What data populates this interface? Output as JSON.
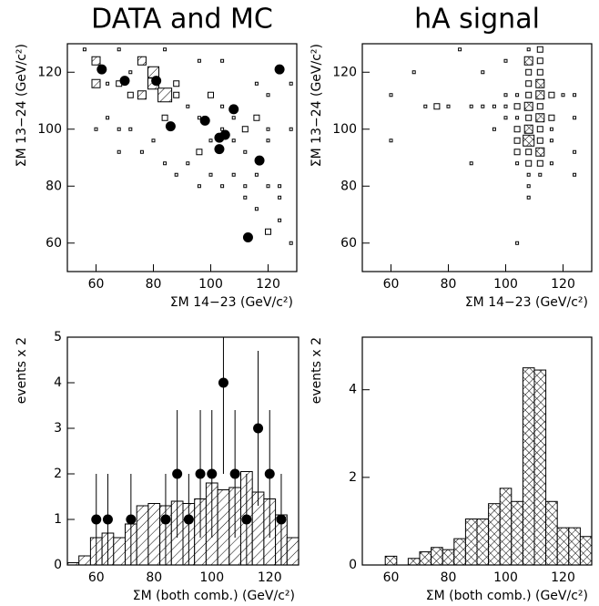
{
  "chart_data": [
    {
      "type": "scatter",
      "title": "DATA and MC",
      "x_label": "ΣM 14−23 (GeV/c²)",
      "y_label": "ΣM 13−24 (GeV/c²)",
      "xlim": [
        50,
        130
      ],
      "ylim": [
        50,
        130
      ],
      "xticks": [
        60,
        80,
        100,
        120
      ],
      "yticks": [
        60,
        80,
        100,
        120
      ],
      "series": [
        {
          "marker": "box",
          "hatch": "diagonal",
          "color": "#000000",
          "x": [
            80,
            80,
            84,
            76,
            72,
            88,
            68,
            60,
            76,
            64,
            60,
            72,
            88,
            84,
            92,
            96,
            100,
            104,
            108,
            112,
            100,
            104,
            96,
            116,
            120,
            108,
            112,
            116,
            120,
            124,
            116,
            120,
            124,
            112,
            68,
            72,
            60,
            64,
            56,
            68,
            84,
            96,
            104,
            116,
            120,
            124,
            128,
            92,
            100,
            108,
            84,
            88,
            128,
            124,
            96,
            104,
            112,
            120,
            128,
            80,
            76,
            68
          ],
          "y": [
            120,
            116,
            112,
            112,
            112,
            112,
            116,
            124,
            124,
            116,
            116,
            120,
            116,
            104,
            108,
            104,
            112,
            108,
            104,
            100,
            96,
            100,
            92,
            104,
            100,
            96,
            92,
            84,
            80,
            80,
            72,
            64,
            76,
            76,
            100,
            100,
            100,
            104,
            128,
            128,
            128,
            124,
            124,
            116,
            112,
            120,
            116,
            88,
            84,
            84,
            88,
            84,
            60,
            68,
            80,
            80,
            80,
            96,
            100,
            96,
            92,
            92
          ],
          "size": [
            4,
            4,
            5,
            3,
            2,
            2,
            2,
            3,
            3,
            1,
            3,
            1,
            2,
            2,
            1,
            1,
            2,
            1,
            1,
            2,
            1,
            1,
            2,
            2,
            1,
            1,
            1,
            1,
            1,
            1,
            1,
            2,
            1,
            1,
            1,
            1,
            1,
            1,
            1,
            1,
            1,
            1,
            1,
            1,
            1,
            1,
            1,
            1,
            1,
            1,
            1,
            1,
            1,
            1,
            1,
            1,
            1,
            1,
            1,
            1,
            1,
            1
          ]
        },
        {
          "marker": "circle",
          "color": "#000000",
          "x": [
            62,
            70,
            81,
            86,
            98,
            108,
            103,
            105,
            103,
            117,
            124,
            113
          ],
          "y": [
            121,
            117,
            117,
            101,
            103,
            107,
            97,
            98,
            93,
            89,
            121,
            62
          ]
        }
      ]
    },
    {
      "type": "scatter",
      "title": "hA signal",
      "x_label": "ΣM 14−23 (GeV/c²)",
      "y_label": "ΣM 13−24 (GeV/c²)",
      "xlim": [
        50,
        130
      ],
      "ylim": [
        50,
        130
      ],
      "xticks": [
        60,
        80,
        100,
        120
      ],
      "yticks": [
        60,
        80,
        100,
        120
      ],
      "series": [
        {
          "marker": "box",
          "hatch": "cross",
          "color": "#000000",
          "x": [
            108,
            112,
            112,
            108,
            108,
            112,
            108,
            112,
            108,
            112,
            108,
            112,
            108,
            112,
            108,
            112,
            108,
            112,
            108,
            112,
            108,
            112,
            104,
            104,
            104,
            104,
            104,
            104,
            104,
            100,
            100,
            100,
            96,
            96,
            92,
            88,
            80,
            76,
            72,
            116,
            120,
            116,
            116,
            116,
            116,
            108,
            108,
            108,
            112,
            104,
            60,
            60,
            68,
            84,
            92,
            100,
            124,
            124,
            124,
            124,
            88
          ],
          "y": [
            124,
            128,
            124,
            128,
            120,
            120,
            116,
            116,
            112,
            112,
            108,
            108,
            104,
            104,
            100,
            100,
            96,
            96,
            92,
            92,
            88,
            88,
            88,
            92,
            96,
            100,
            104,
            108,
            112,
            108,
            112,
            104,
            108,
            100,
            108,
            108,
            108,
            108,
            108,
            112,
            112,
            104,
            100,
            96,
            88,
            84,
            80,
            76,
            84,
            60,
            96,
            112,
            120,
            128,
            120,
            124,
            112,
            104,
            92,
            84,
            88
          ],
          "size": [
            3,
            2,
            2,
            1,
            2,
            2,
            2,
            3,
            2,
            3,
            3,
            2,
            2,
            3,
            3,
            2,
            4,
            2,
            2,
            3,
            2,
            2,
            1,
            2,
            2,
            2,
            1,
            2,
            1,
            1,
            1,
            1,
            1,
            1,
            1,
            1,
            1,
            2,
            1,
            2,
            1,
            2,
            1,
            1,
            1,
            1,
            1,
            1,
            1,
            1,
            1,
            1,
            1,
            1,
            1,
            1,
            1,
            1,
            1,
            1,
            1
          ]
        }
      ]
    },
    {
      "type": "histogram",
      "x_label": "ΣM (both comb.) (GeV/c²)",
      "y_label": "events x 2",
      "xlim": [
        50,
        130
      ],
      "ylim": [
        0,
        5
      ],
      "xticks": [
        60,
        80,
        100,
        120
      ],
      "yticks": [
        0,
        1,
        2,
        3,
        4,
        5
      ],
      "hatch": "diagonal",
      "color": "#000000",
      "bins": [
        50,
        54,
        58,
        62,
        66,
        70,
        74,
        78,
        82,
        86,
        90,
        94,
        98,
        102,
        106,
        110,
        114,
        118,
        122,
        126,
        130
      ],
      "values": [
        0.05,
        0.2,
        0.6,
        0.7,
        0.6,
        0.9,
        1.3,
        1.35,
        1.3,
        1.4,
        1.35,
        1.45,
        1.8,
        1.65,
        1.7,
        2.05,
        1.6,
        1.45,
        1.1,
        0.6
      ],
      "points": {
        "x": [
          60,
          64,
          72,
          84,
          88,
          92,
          96,
          100,
          104,
          108,
          112,
          116,
          120,
          124
        ],
        "y": [
          1,
          1,
          1,
          1,
          2,
          1,
          2,
          2,
          4,
          2,
          1,
          3,
          2,
          1
        ],
        "yerr": [
          1,
          1,
          1,
          1,
          1.4,
          1,
          1.4,
          1.4,
          2,
          1.4,
          1,
          1.7,
          1.4,
          1
        ]
      }
    },
    {
      "type": "histogram",
      "x_label": "ΣM (both comb.) (GeV/c²)",
      "y_label": "events x 2",
      "xlim": [
        50,
        130
      ],
      "ylim": [
        0,
        5.2
      ],
      "xticks": [
        60,
        80,
        100,
        120
      ],
      "yticks": [
        0,
        2,
        4
      ],
      "hatch": "cross",
      "color": "#000000",
      "bins": [
        50,
        54,
        58,
        62,
        66,
        70,
        74,
        78,
        82,
        86,
        90,
        94,
        98,
        102,
        106,
        110,
        114,
        118,
        122,
        126,
        130
      ],
      "values": [
        0,
        0,
        0.2,
        0,
        0.15,
        0.3,
        0.4,
        0.35,
        0.6,
        1.05,
        1.05,
        1.4,
        1.75,
        1.45,
        4.5,
        4.45,
        1.45,
        0.85,
        0.85,
        0.65
      ]
    }
  ]
}
